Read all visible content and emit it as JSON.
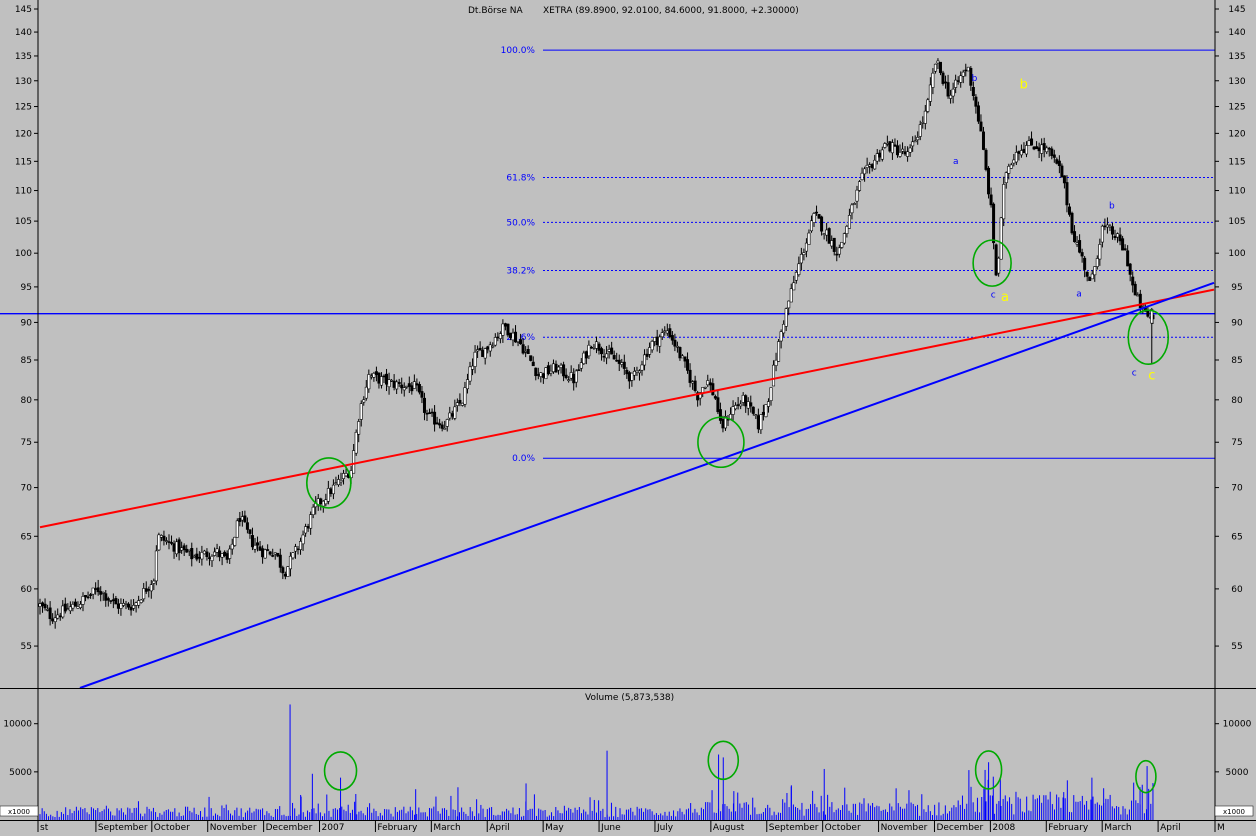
{
  "chart_data": {
    "type": "candlestick",
    "title": "Dt.Börse NA",
    "subtitle": "XETRA (89.8900, 92.0100, 84.6000, 91.8000, +2.30000)",
    "price_axis": {
      "ticks": [
        "55",
        "60",
        "65",
        "70",
        "75",
        "80",
        "85",
        "90",
        "95",
        "100",
        "105",
        "110",
        "115",
        "120",
        "125",
        "130",
        "135",
        "140",
        "145"
      ],
      "range": [
        51.6,
        147
      ]
    },
    "volume_axis": {
      "title": "Volume (5,873,538)",
      "ticks": [
        "5000",
        "10000"
      ],
      "unit_label": "x1000",
      "range": [
        0,
        13500
      ]
    },
    "x_axis": {
      "labels": [
        "st",
        "September",
        "October",
        "November",
        "December",
        "2007",
        "February",
        "March",
        "April",
        "May",
        "June",
        "July",
        "August",
        "September",
        "October",
        "November",
        "December",
        "2008",
        "February",
        "March",
        "April",
        "M"
      ]
    },
    "fibonacci": {
      "levels": [
        {
          "label": "100.0%",
          "value": 136.2
        },
        {
          "label": "61.8%",
          "value": 112.2
        },
        {
          "label": "50.0%",
          "value": 104.8
        },
        {
          "label": "38.2%",
          "value": 97.4
        },
        {
          "label": "23.6%",
          "value": 88.0
        },
        {
          "label": "0.0%",
          "value": 73.2
        }
      ]
    },
    "horizontal_support": {
      "value": 91.2
    },
    "trendlines": [
      {
        "name": "red-trendline",
        "color": "#ff0000",
        "from": {
          "t": 0,
          "v": 65.9
        },
        "to": {
          "t": 1,
          "v": 94.6
        }
      },
      {
        "name": "blue-trendline",
        "color": "#0000ff",
        "from": {
          "t": 0.034,
          "v": 51.6
        },
        "to": {
          "t": 1,
          "v": 95.6
        }
      }
    ],
    "wave_labels": [
      {
        "text": "b",
        "color": "#0000ff",
        "t": 0.796,
        "v": 130.0
      },
      {
        "text": "b",
        "color": "#ffff00",
        "t": 0.838,
        "v": 128.5
      },
      {
        "text": "a",
        "color": "#0000ff",
        "t": 0.78,
        "v": 114.5
      },
      {
        "text": "c",
        "color": "#0000ff",
        "t": 0.812,
        "v": 93.5
      },
      {
        "text": "a",
        "color": "#ffff00",
        "t": 0.822,
        "v": 93.0
      },
      {
        "text": "b",
        "color": "#0000ff",
        "t": 0.913,
        "v": 107.0
      },
      {
        "text": "a",
        "color": "#0000ff",
        "t": 0.885,
        "v": 93.6
      },
      {
        "text": "c",
        "color": "#0000ff",
        "t": 0.932,
        "v": 83.0
      },
      {
        "text": "c",
        "color": "#ffff00",
        "t": 0.947,
        "v": 82.5
      }
    ],
    "price_markers": [
      {
        "t": 0.246,
        "v": 70.5,
        "rx": 22,
        "ry": 25
      },
      {
        "t": 0.58,
        "v": 75.0,
        "rx": 23,
        "ry": 25
      },
      {
        "t": 0.811,
        "v": 98.5,
        "rx": 19,
        "ry": 23
      },
      {
        "t": 0.944,
        "v": 88.0,
        "rx": 20,
        "ry": 27
      }
    ],
    "volume_markers": [
      {
        "t": 0.256,
        "v": 5100,
        "rx": 16,
        "ry": 19
      },
      {
        "t": 0.582,
        "v": 6200,
        "rx": 15,
        "ry": 19
      },
      {
        "t": 0.808,
        "v": 5200,
        "rx": 13,
        "ry": 19
      },
      {
        "t": 0.942,
        "v": 4500,
        "rx": 10,
        "ry": 16
      }
    ],
    "price_anchors": [
      [
        0.0,
        58.5
      ],
      [
        0.01,
        57.5
      ],
      [
        0.03,
        58.5
      ],
      [
        0.05,
        60.0
      ],
      [
        0.065,
        58.5
      ],
      [
        0.08,
        58.5
      ],
      [
        0.09,
        60.0
      ],
      [
        0.097,
        61.0
      ],
      [
        0.1,
        65.0
      ],
      [
        0.115,
        64.0
      ],
      [
        0.13,
        63.0
      ],
      [
        0.15,
        63.5
      ],
      [
        0.16,
        62.5
      ],
      [
        0.17,
        67.0
      ],
      [
        0.18,
        64.5
      ],
      [
        0.19,
        63.5
      ],
      [
        0.2,
        63.5
      ],
      [
        0.208,
        61.5
      ],
      [
        0.22,
        64.0
      ],
      [
        0.235,
        68.0
      ],
      [
        0.25,
        70.0
      ],
      [
        0.265,
        72.0
      ],
      [
        0.272,
        78.5
      ],
      [
        0.28,
        83.0
      ],
      [
        0.3,
        82.0
      ],
      [
        0.32,
        81.5
      ],
      [
        0.33,
        78.0
      ],
      [
        0.345,
        77.0
      ],
      [
        0.36,
        80.0
      ],
      [
        0.37,
        85.5
      ],
      [
        0.38,
        86.5
      ],
      [
        0.396,
        89.5
      ],
      [
        0.41,
        87.0
      ],
      [
        0.425,
        83.0
      ],
      [
        0.44,
        84.0
      ],
      [
        0.455,
        82.5
      ],
      [
        0.47,
        87.5
      ],
      [
        0.49,
        85.0
      ],
      [
        0.505,
        82.5
      ],
      [
        0.52,
        87.0
      ],
      [
        0.535,
        89.0
      ],
      [
        0.55,
        84.0
      ],
      [
        0.56,
        80.5
      ],
      [
        0.568,
        82.5
      ],
      [
        0.576,
        80.0
      ],
      [
        0.58,
        76.5
      ],
      [
        0.59,
        79.0
      ],
      [
        0.6,
        80.0
      ],
      [
        0.612,
        77.0
      ],
      [
        0.62,
        80.0
      ],
      [
        0.633,
        90.0
      ],
      [
        0.646,
        98.0
      ],
      [
        0.66,
        106.0
      ],
      [
        0.68,
        100.0
      ],
      [
        0.7,
        112.0
      ],
      [
        0.72,
        118.0
      ],
      [
        0.74,
        116.0
      ],
      [
        0.755,
        124.0
      ],
      [
        0.763,
        134.0
      ],
      [
        0.775,
        127.0
      ],
      [
        0.79,
        133.0
      ],
      [
        0.8,
        122.0
      ],
      [
        0.81,
        107.0
      ],
      [
        0.815,
        95.5
      ],
      [
        0.822,
        113.0
      ],
      [
        0.832,
        117.0
      ],
      [
        0.845,
        118.0
      ],
      [
        0.858,
        117.0
      ],
      [
        0.87,
        113.0
      ],
      [
        0.88,
        103.0
      ],
      [
        0.89,
        98.0
      ],
      [
        0.895,
        95.0
      ],
      [
        0.905,
        104.0
      ],
      [
        0.915,
        103.0
      ],
      [
        0.925,
        100.0
      ],
      [
        0.932,
        94.0
      ],
      [
        0.942,
        91.0
      ],
      [
        0.948,
        90.5
      ]
    ],
    "volume_spikes": [
      [
        0.144,
        2400
      ],
      [
        0.213,
        12000
      ],
      [
        0.222,
        2600
      ],
      [
        0.232,
        4800
      ],
      [
        0.256,
        4400
      ],
      [
        0.269,
        2700
      ],
      [
        0.32,
        3200
      ],
      [
        0.356,
        3400
      ],
      [
        0.414,
        3800
      ],
      [
        0.483,
        7200
      ],
      [
        0.578,
        6800
      ],
      [
        0.582,
        6500
      ],
      [
        0.591,
        3000
      ],
      [
        0.64,
        3600
      ],
      [
        0.668,
        5300
      ],
      [
        0.805,
        5200
      ],
      [
        0.808,
        6000
      ],
      [
        0.812,
        4500
      ],
      [
        0.818,
        4300
      ],
      [
        0.872,
        2900
      ],
      [
        0.896,
        4400
      ],
      [
        0.906,
        3300
      ],
      [
        0.937,
        3400
      ],
      [
        0.943,
        5600
      ]
    ]
  }
}
